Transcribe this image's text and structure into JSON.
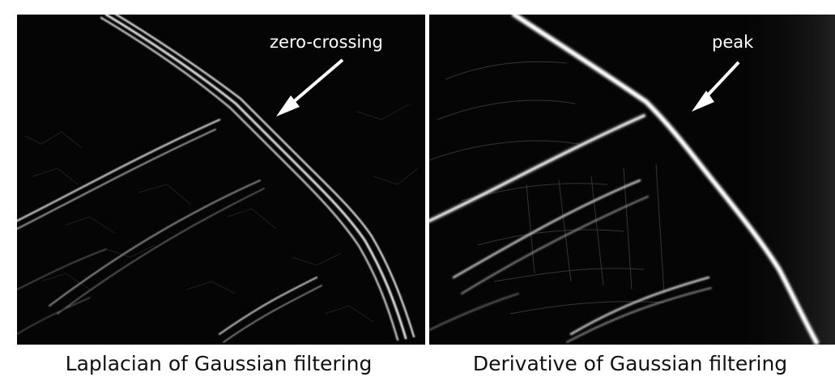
{
  "panels": [
    {
      "annotation": "zero-crossing",
      "caption": "Laplacian of Gaussian filtering"
    },
    {
      "annotation": "peak",
      "caption": "Derivative of Gaussian filtering"
    }
  ],
  "colors": {
    "background": "#ffffff",
    "image_background": "#050505",
    "edge": "#e6e6e6",
    "annotation": "#ffffff",
    "caption": "#111111"
  }
}
